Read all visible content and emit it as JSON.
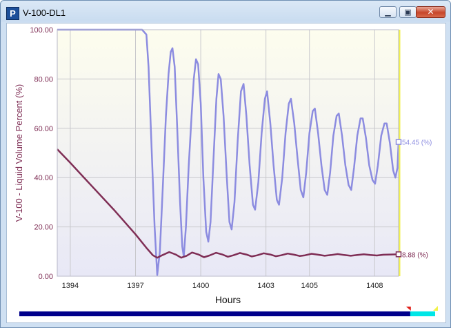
{
  "window": {
    "title": "V-100-DL1",
    "app_icon_letter": "P",
    "minimize_glyph": "▁",
    "maximize_glyph": "▣",
    "close_glyph": "✕"
  },
  "colors": {
    "volume_series": "#8c8ce0",
    "level_series": "#7f2e55",
    "axis_text": "#7f2e55",
    "plot_bg_top": "#fdfdee",
    "plot_bg_bottom": "#e8e8f6",
    "cursor_line": "#f2f24a",
    "scroll_track": "#00008b",
    "scroll_thumb": "#00e6e6"
  },
  "chart_data": {
    "type": "line",
    "xlabel": "Hours",
    "ylabel": "V-100 - Liquid Volume Percent (%)",
    "xlim": [
      1393.4,
      1409.1
    ],
    "ylim": [
      0,
      100
    ],
    "x_ticks": [
      1394,
      1397,
      1400,
      1403,
      1405,
      1408
    ],
    "x_tick_labels": [
      "1394",
      "1397",
      "1400",
      "1403",
      "1405",
      "1408"
    ],
    "y_ticks": [
      0,
      20,
      40,
      60,
      80,
      100
    ],
    "y_tick_labels": [
      "0.00",
      "20.00",
      "40.00",
      "60.00",
      "80.00",
      "100.00"
    ],
    "grid": true,
    "series": [
      {
        "name": "",
        "end_label": "54.45 (%)",
        "points": [
          [
            1393.4,
            100
          ],
          [
            1394.5,
            100
          ],
          [
            1395.5,
            100
          ],
          [
            1396.5,
            100
          ],
          [
            1397.3,
            100
          ],
          [
            1397.5,
            98
          ],
          [
            1397.6,
            85
          ],
          [
            1397.75,
            50
          ],
          [
            1397.88,
            20
          ],
          [
            1398.0,
            0.5
          ],
          [
            1398.12,
            10
          ],
          [
            1398.25,
            35
          ],
          [
            1398.4,
            65
          ],
          [
            1398.52,
            82
          ],
          [
            1398.62,
            91
          ],
          [
            1398.7,
            92.5
          ],
          [
            1398.8,
            85
          ],
          [
            1398.92,
            60
          ],
          [
            1399.05,
            30
          ],
          [
            1399.15,
            12
          ],
          [
            1399.22,
            8
          ],
          [
            1399.32,
            20
          ],
          [
            1399.45,
            45
          ],
          [
            1399.58,
            65
          ],
          [
            1399.68,
            80
          ],
          [
            1399.78,
            88
          ],
          [
            1399.88,
            86
          ],
          [
            1400.0,
            70
          ],
          [
            1400.12,
            40
          ],
          [
            1400.25,
            18
          ],
          [
            1400.35,
            14
          ],
          [
            1400.45,
            22
          ],
          [
            1400.6,
            50
          ],
          [
            1400.72,
            72
          ],
          [
            1400.82,
            82
          ],
          [
            1400.92,
            80
          ],
          [
            1401.05,
            65
          ],
          [
            1401.2,
            40
          ],
          [
            1401.32,
            22
          ],
          [
            1401.42,
            19
          ],
          [
            1401.55,
            30
          ],
          [
            1401.7,
            55
          ],
          [
            1401.85,
            75
          ],
          [
            1401.97,
            78
          ],
          [
            1402.1,
            65
          ],
          [
            1402.25,
            45
          ],
          [
            1402.4,
            29
          ],
          [
            1402.5,
            27
          ],
          [
            1402.65,
            38
          ],
          [
            1402.8,
            58
          ],
          [
            1402.95,
            72
          ],
          [
            1403.05,
            75
          ],
          [
            1403.2,
            62
          ],
          [
            1403.35,
            45
          ],
          [
            1403.5,
            31
          ],
          [
            1403.6,
            29
          ],
          [
            1403.75,
            40
          ],
          [
            1403.9,
            58
          ],
          [
            1404.05,
            70
          ],
          [
            1404.15,
            72
          ],
          [
            1404.3,
            62
          ],
          [
            1404.45,
            48
          ],
          [
            1404.6,
            35
          ],
          [
            1404.72,
            32
          ],
          [
            1404.85,
            42
          ],
          [
            1405.0,
            58
          ],
          [
            1405.15,
            67
          ],
          [
            1405.25,
            68
          ],
          [
            1405.4,
            58
          ],
          [
            1405.55,
            45
          ],
          [
            1405.7,
            35
          ],
          [
            1405.82,
            33
          ],
          [
            1405.95,
            42
          ],
          [
            1406.1,
            57
          ],
          [
            1406.25,
            65
          ],
          [
            1406.35,
            66
          ],
          [
            1406.5,
            57
          ],
          [
            1406.65,
            45
          ],
          [
            1406.8,
            37
          ],
          [
            1406.92,
            35
          ],
          [
            1407.05,
            44
          ],
          [
            1407.2,
            57
          ],
          [
            1407.35,
            64
          ],
          [
            1407.45,
            64
          ],
          [
            1407.6,
            56
          ],
          [
            1407.75,
            45
          ],
          [
            1407.9,
            39
          ],
          [
            1408.02,
            37.5
          ],
          [
            1408.15,
            45
          ],
          [
            1408.3,
            57
          ],
          [
            1408.45,
            62
          ],
          [
            1408.55,
            62
          ],
          [
            1408.7,
            54
          ],
          [
            1408.85,
            43
          ],
          [
            1408.95,
            40
          ],
          [
            1409.05,
            44
          ],
          [
            1409.1,
            54.45
          ]
        ]
      },
      {
        "name": "",
        "end_label": "8.88 (%)",
        "points": [
          [
            1393.4,
            51.5
          ],
          [
            1394.0,
            46
          ],
          [
            1395.0,
            36.5
          ],
          [
            1396.0,
            27
          ],
          [
            1397.0,
            17
          ],
          [
            1397.5,
            11.5
          ],
          [
            1397.8,
            8.5
          ],
          [
            1398.0,
            7.5
          ],
          [
            1398.25,
            8.6
          ],
          [
            1398.55,
            9.8
          ],
          [
            1398.85,
            8.8
          ],
          [
            1399.1,
            7.5
          ],
          [
            1399.35,
            8.3
          ],
          [
            1399.6,
            9.6
          ],
          [
            1399.9,
            8.8
          ],
          [
            1400.15,
            7.7
          ],
          [
            1400.4,
            8.4
          ],
          [
            1400.7,
            9.5
          ],
          [
            1401.0,
            8.8
          ],
          [
            1401.25,
            7.9
          ],
          [
            1401.5,
            8.5
          ],
          [
            1401.8,
            9.4
          ],
          [
            1402.1,
            8.8
          ],
          [
            1402.35,
            8.0
          ],
          [
            1402.6,
            8.5
          ],
          [
            1402.9,
            9.3
          ],
          [
            1403.2,
            8.8
          ],
          [
            1403.45,
            8.1
          ],
          [
            1403.7,
            8.5
          ],
          [
            1404.0,
            9.2
          ],
          [
            1404.3,
            8.7
          ],
          [
            1404.55,
            8.2
          ],
          [
            1404.8,
            8.5
          ],
          [
            1405.1,
            9.1
          ],
          [
            1405.4,
            8.7
          ],
          [
            1405.7,
            8.3
          ],
          [
            1406.0,
            8.6
          ],
          [
            1406.3,
            9.0
          ],
          [
            1406.6,
            8.6
          ],
          [
            1406.9,
            8.3
          ],
          [
            1407.2,
            8.6
          ],
          [
            1407.5,
            8.9
          ],
          [
            1407.8,
            8.6
          ],
          [
            1408.1,
            8.4
          ],
          [
            1408.4,
            8.7
          ],
          [
            1408.7,
            8.8
          ],
          [
            1409.1,
            8.88
          ]
        ]
      }
    ]
  },
  "scrollbar": {
    "visible_fraction": 0.94
  }
}
